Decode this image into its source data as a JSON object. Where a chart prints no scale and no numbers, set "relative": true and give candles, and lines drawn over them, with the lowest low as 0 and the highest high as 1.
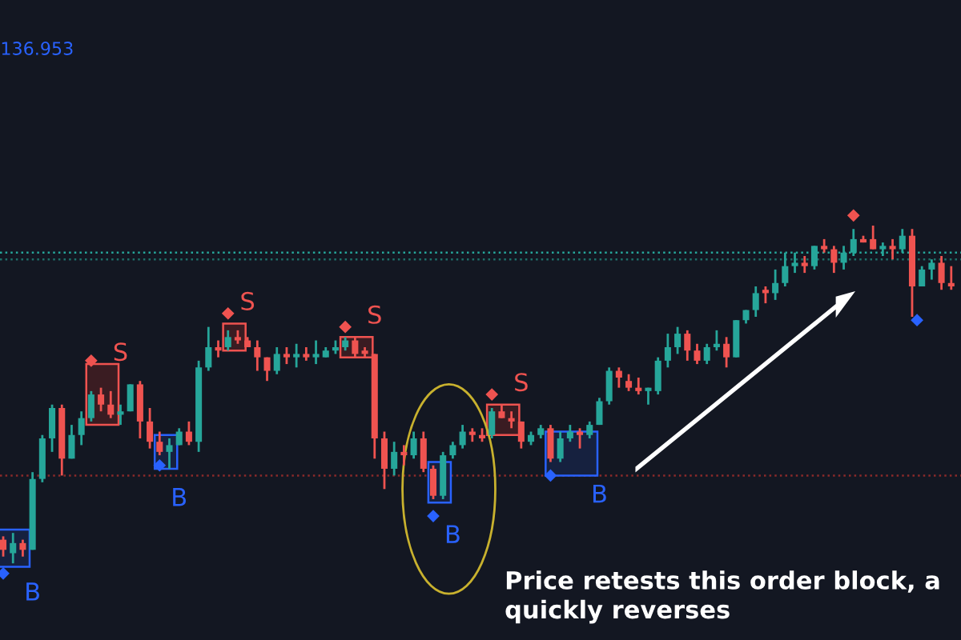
{
  "chart_data": {
    "type": "candlestick",
    "relative": true,
    "categories": [
      null,
      null,
      null,
      null,
      null,
      null,
      null,
      null,
      null,
      null,
      null,
      null,
      null,
      null,
      null,
      null,
      null,
      null,
      null,
      null,
      null,
      null,
      null,
      null,
      null,
      null,
      null,
      null,
      null,
      null,
      null,
      null,
      null,
      null,
      null,
      null,
      null,
      null,
      null,
      null,
      null,
      null,
      null,
      null,
      null,
      null,
      null,
      null,
      null,
      null,
      null,
      null,
      null,
      null,
      null,
      null,
      null,
      null,
      null,
      null,
      null,
      null,
      null,
      null,
      null,
      null,
      null,
      null,
      null,
      null,
      null,
      null,
      null,
      null,
      null,
      null,
      null,
      null,
      null,
      null,
      null,
      null,
      null,
      null,
      null,
      null,
      null,
      null,
      null,
      null,
      null,
      null,
      null,
      null,
      null,
      null,
      null,
      null
    ],
    "ohlc": [
      [
        0.07,
        0.08,
        0.02,
        0.04
      ],
      [
        0.03,
        0.09,
        0,
        0.06
      ],
      [
        0.06,
        0.07,
        0.02,
        0.04
      ],
      [
        0.04,
        0.27,
        0.04,
        0.25
      ],
      [
        0.25,
        0.38,
        0.24,
        0.37
      ],
      [
        0.37,
        0.47,
        0.33,
        0.46
      ],
      [
        0.46,
        0.47,
        0.26,
        0.31
      ],
      [
        0.31,
        0.41,
        0.31,
        0.38
      ],
      [
        0.38,
        0.45,
        0.35,
        0.43
      ],
      [
        0.43,
        0.51,
        0.42,
        0.5
      ],
      [
        0.5,
        0.52,
        0.45,
        0.47
      ],
      [
        0.47,
        0.51,
        0.43,
        0.44
      ],
      [
        0.44,
        0.47,
        0.41,
        0.45
      ],
      [
        0.45,
        0.53,
        0.45,
        0.53
      ],
      [
        0.53,
        0.54,
        0.37,
        0.42
      ],
      [
        0.42,
        0.46,
        0.34,
        0.36
      ],
      [
        0.36,
        0.39,
        0.32,
        0.33
      ],
      [
        0.33,
        0.37,
        0.28,
        0.35
      ],
      [
        0.35,
        0.4,
        0.35,
        0.39
      ],
      [
        0.39,
        0.42,
        0.35,
        0.36
      ],
      [
        0.36,
        0.6,
        0.33,
        0.58
      ],
      [
        0.58,
        0.7,
        0.57,
        0.64
      ],
      [
        0.64,
        0.66,
        0.61,
        0.63
      ],
      [
        0.64,
        0.69,
        0.63,
        0.67
      ],
      [
        0.67,
        0.69,
        0.65,
        0.66
      ],
      [
        0.66,
        0.67,
        0.64,
        0.64
      ],
      [
        0.64,
        0.66,
        0.57,
        0.61
      ],
      [
        0.61,
        0.61,
        0.54,
        0.57
      ],
      [
        0.57,
        0.64,
        0.56,
        0.62
      ],
      [
        0.62,
        0.64,
        0.59,
        0.61
      ],
      [
        0.61,
        0.65,
        0.58,
        0.62
      ],
      [
        0.62,
        0.64,
        0.6,
        0.61
      ],
      [
        0.61,
        0.66,
        0.59,
        0.62
      ],
      [
        0.61,
        0.64,
        0.61,
        0.63
      ],
      [
        0.63,
        0.66,
        0.62,
        0.64
      ],
      [
        0.64,
        0.67,
        0.63,
        0.66
      ],
      [
        0.66,
        0.67,
        0.61,
        0.62
      ],
      [
        0.63,
        0.64,
        0.61,
        0.62
      ],
      [
        0.62,
        0.62,
        0.31,
        0.37
      ],
      [
        0.37,
        0.39,
        0.22,
        0.28
      ],
      [
        0.28,
        0.36,
        0.26,
        0.33
      ],
      [
        0.33,
        0.35,
        0.29,
        0.32
      ],
      [
        0.32,
        0.39,
        0.31,
        0.37
      ],
      [
        0.37,
        0.39,
        0.27,
        0.28
      ],
      [
        0.28,
        0.29,
        0.19,
        0.2
      ],
      [
        0.2,
        0.33,
        0.19,
        0.32
      ],
      [
        0.32,
        0.36,
        0.31,
        0.35
      ],
      [
        0.35,
        0.41,
        0.34,
        0.39
      ],
      [
        0.39,
        0.4,
        0.36,
        0.38
      ],
      [
        0.38,
        0.4,
        0.36,
        0.37
      ],
      [
        0.38,
        0.46,
        0.37,
        0.45
      ],
      [
        0.45,
        0.47,
        0.43,
        0.43
      ],
      [
        0.43,
        0.45,
        0.4,
        0.42
      ],
      [
        0.42,
        0.42,
        0.34,
        0.36
      ],
      [
        0.36,
        0.39,
        0.35,
        0.38
      ],
      [
        0.38,
        0.41,
        0.37,
        0.4
      ],
      [
        0.4,
        0.41,
        0.3,
        0.31
      ],
      [
        0.31,
        0.39,
        0.3,
        0.37
      ],
      [
        0.37,
        0.41,
        0.36,
        0.39
      ],
      [
        0.39,
        0.4,
        0.34,
        0.38
      ],
      [
        0.38,
        0.42,
        0.37,
        0.41
      ],
      [
        0.41,
        0.49,
        0.41,
        0.48
      ],
      [
        0.48,
        0.58,
        0.47,
        0.57
      ],
      [
        0.57,
        0.58,
        0.52,
        0.55
      ],
      [
        0.54,
        0.56,
        0.51,
        0.52
      ],
      [
        0.52,
        0.55,
        0.5,
        0.51
      ],
      [
        0.51,
        0.52,
        0.47,
        0.52
      ],
      [
        0.51,
        0.61,
        0.5,
        0.6
      ],
      [
        0.6,
        0.68,
        0.58,
        0.64
      ],
      [
        0.64,
        0.7,
        0.62,
        0.68
      ],
      [
        0.68,
        0.69,
        0.6,
        0.63
      ],
      [
        0.63,
        0.65,
        0.59,
        0.6
      ],
      [
        0.6,
        0.65,
        0.59,
        0.64
      ],
      [
        0.64,
        0.69,
        0.63,
        0.65
      ],
      [
        0.65,
        0.67,
        0.58,
        0.61
      ],
      [
        0.61,
        0.72,
        0.61,
        0.72
      ],
      [
        0.72,
        0.75,
        0.71,
        0.75
      ],
      [
        0.75,
        0.82,
        0.73,
        0.8
      ],
      [
        0.81,
        0.82,
        0.77,
        0.8
      ],
      [
        0.8,
        0.87,
        0.78,
        0.83
      ],
      [
        0.83,
        0.92,
        0.82,
        0.88
      ],
      [
        0.88,
        0.92,
        0.86,
        0.89
      ],
      [
        0.89,
        0.91,
        0.86,
        0.88
      ],
      [
        0.88,
        0.94,
        0.87,
        0.94
      ],
      [
        0.94,
        0.96,
        0.92,
        0.93
      ],
      [
        0.93,
        0.94,
        0.86,
        0.89
      ],
      [
        0.89,
        0.94,
        0.87,
        0.92
      ],
      [
        0.92,
        0.99,
        0.91,
        0.96
      ],
      [
        0.96,
        0.97,
        0.95,
        0.95
      ],
      [
        0.96,
        1,
        0.93,
        0.93
      ],
      [
        0.93,
        0.95,
        0.91,
        0.94
      ],
      [
        0.94,
        0.96,
        0.9,
        0.93
      ],
      [
        0.93,
        0.99,
        0.92,
        0.97
      ],
      [
        0.97,
        0.99,
        0.73,
        0.82
      ],
      [
        0.82,
        0.88,
        0.82,
        0.87
      ],
      [
        0.87,
        0.9,
        0.84,
        0.89
      ],
      [
        0.89,
        0.91,
        0.81,
        0.83
      ],
      [
        0.83,
        0.88,
        0.81,
        0.82
      ]
    ],
    "colors": [
      "#ef5350",
      "#26a69a",
      "#ef5350",
      "#26a69a",
      "#26a69a",
      "#26a69a",
      "#ef5350",
      "#26a69a",
      "#26a69a",
      "#26a69a",
      "#ef5350",
      "#ef5350",
      "#26a69a",
      "#26a69a",
      "#ef5350",
      "#ef5350",
      "#ef5350",
      "#26a69a",
      "#26a69a",
      "#ef5350",
      "#26a69a",
      "#26a69a",
      "#ef5350",
      "#26a69a",
      "#ef5350",
      "#ef5350",
      "#ef5350",
      "#ef5350",
      "#26a69a",
      "#ef5350",
      "#26a69a",
      "#ef5350",
      "#26a69a",
      "#26a69a",
      "#26a69a",
      "#26a69a",
      "#ef5350",
      "#ef5350",
      "#ef5350",
      "#ef5350",
      "#26a69a",
      "#ef5350",
      "#26a69a",
      "#ef5350",
      "#ef5350",
      "#26a69a",
      "#26a69a",
      "#26a69a",
      "#ef5350",
      "#ef5350",
      "#26a69a",
      "#ef5350",
      "#ef5350",
      "#ef5350",
      "#26a69a",
      "#26a69a",
      "#ef5350",
      "#26a69a",
      "#26a69a",
      "#ef5350",
      "#26a69a",
      "#26a69a",
      "#26a69a",
      "#ef5350",
      "#ef5350",
      "#ef5350",
      "#26a69a",
      "#26a69a",
      "#26a69a",
      "#26a69a",
      "#ef5350",
      "#ef5350",
      "#26a69a",
      "#26a69a",
      "#ef5350",
      "#26a69a",
      "#26a69a",
      "#26a69a",
      "#ef5350",
      "#26a69a",
      "#26a69a",
      "#26a69a",
      "#ef5350",
      "#26a69a",
      "#ef5350",
      "#ef5350",
      "#26a69a",
      "#26a69a",
      "#ef5350",
      "#ef5350",
      "#26a69a",
      "#ef5350",
      "#26a69a",
      "#ef5350",
      "#26a69a",
      "#26a69a",
      "#ef5350",
      "#ef5350"
    ],
    "ref_lines": [
      {
        "axis": "y",
        "value": 0.92,
        "color": "#26a69a",
        "line_style": "dotted"
      },
      {
        "axis": "y",
        "value": 0.9,
        "color": "#1e6f68",
        "line_style": "dotted"
      },
      {
        "axis": "y",
        "value": 0.26,
        "color": "#8b2a2a",
        "line_style": "dotted"
      }
    ],
    "annotations": [
      "136.953",
      "S",
      "S",
      "S",
      "S",
      "B",
      "B",
      "B",
      "B",
      "Price retests this order block, a\nquickly reverses"
    ]
  }
}
